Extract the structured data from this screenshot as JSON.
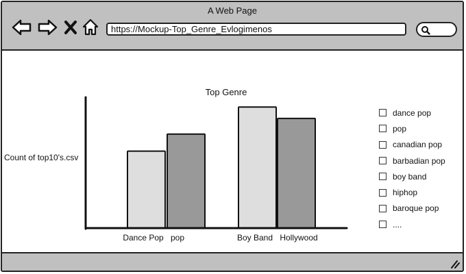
{
  "window": {
    "title": "A Web Page"
  },
  "toolbar": {
    "back_icon": "arrow-left-icon",
    "forward_icon": "arrow-right-icon",
    "close_icon": "x-icon",
    "home_icon": "house-icon",
    "url": "https://Mockup-Top_Genre_Evlogimenos",
    "search_icon": "magnifier-icon"
  },
  "chart_data": {
    "type": "bar",
    "title": "Top Genre",
    "ylabel": "Count of top10's.csv",
    "xlabel": "",
    "categories": [
      "Dance Pop",
      "pop",
      "Boy Band",
      "Hollywood"
    ],
    "values": [
      54,
      66,
      85,
      77
    ],
    "ylim": [
      0,
      100
    ],
    "bar_colors": [
      "#dedede",
      "#999999",
      "#dedede",
      "#999999"
    ],
    "grid": false
  },
  "legend": {
    "items": [
      {
        "label": "dance pop"
      },
      {
        "label": "pop"
      },
      {
        "label": "canadian pop"
      },
      {
        "label": "barbadian pop"
      },
      {
        "label": "boy band"
      },
      {
        "label": "hiphop"
      },
      {
        "label": "baroque pop"
      },
      {
        "label": "...."
      }
    ]
  },
  "colors": {
    "chrome": "#c0c0c0",
    "outline": "#222222"
  }
}
